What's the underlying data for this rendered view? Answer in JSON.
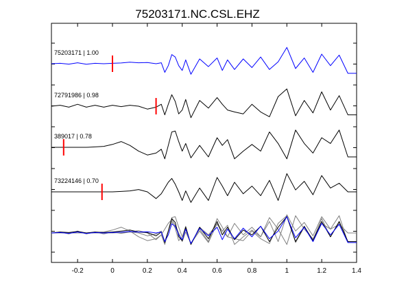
{
  "chart_data": {
    "type": "line",
    "title": "75203171.NC.CSL.EHZ",
    "xlabel": "",
    "ylabel": "",
    "xlim": [
      -0.35,
      1.4
    ],
    "xticks": [
      -0.2,
      0,
      0.2,
      0.4,
      0.6,
      0.8,
      1,
      1.2,
      1.4
    ],
    "xtick_labels": [
      "-0.2",
      "0",
      "0.2",
      "0.4",
      "0.6",
      "0.8",
      "1",
      "1.2",
      "1.4"
    ],
    "grid": false,
    "colors": {
      "reference": "#0000ff",
      "match": "#000000",
      "overlay": "#808080",
      "pick": "#ff0000",
      "axes": "#000000"
    },
    "traces": [
      {
        "label": "75203171 | 1.00",
        "pick_time": 0.0,
        "color": "reference",
        "x": [
          -0.35,
          -0.3,
          -0.25,
          -0.2,
          -0.15,
          -0.1,
          -0.05,
          0,
          0.05,
          0.1,
          0.15,
          0.2,
          0.25,
          0.28,
          0.3,
          0.32,
          0.34,
          0.36,
          0.38,
          0.4,
          0.42,
          0.45,
          0.5,
          0.55,
          0.6,
          0.63,
          0.66,
          0.7,
          0.75,
          0.8,
          0.85,
          0.9,
          0.95,
          1.0,
          1.05,
          1.1,
          1.15,
          1.2,
          1.25,
          1.3,
          1.35,
          1.4
        ],
        "y": [
          0.0,
          0.02,
          -0.02,
          0.05,
          -0.03,
          0.02,
          0.0,
          0.02,
          0.04,
          0.08,
          0.05,
          0.06,
          0.0,
          0.05,
          -0.45,
          -0.1,
          0.48,
          0.35,
          -0.1,
          -0.35,
          0.2,
          -0.55,
          0.25,
          -0.15,
          0.3,
          -0.35,
          0.2,
          -0.3,
          0.25,
          -0.2,
          0.35,
          -0.3,
          0.1,
          0.85,
          -0.25,
          0.3,
          -0.45,
          0.5,
          -0.1,
          0.45,
          -0.5,
          -0.5
        ]
      },
      {
        "label": "72791986 | 0.98",
        "pick_time": 0.25,
        "color": "match",
        "x": [
          -0.35,
          -0.3,
          -0.25,
          -0.2,
          -0.15,
          -0.1,
          -0.05,
          0,
          0.05,
          0.1,
          0.15,
          0.2,
          0.25,
          0.28,
          0.3,
          0.32,
          0.34,
          0.36,
          0.38,
          0.4,
          0.42,
          0.45,
          0.5,
          0.55,
          0.6,
          0.63,
          0.66,
          0.7,
          0.75,
          0.8,
          0.85,
          0.9,
          0.95,
          1.0,
          1.05,
          1.1,
          1.15,
          1.2,
          1.25,
          1.3,
          1.35,
          1.4
        ],
        "y": [
          0.0,
          0.05,
          -0.05,
          0.1,
          -0.05,
          0.05,
          -0.05,
          0.05,
          -0.02,
          0.05,
          0.0,
          -0.15,
          -0.05,
          0.1,
          -0.45,
          0.1,
          0.6,
          0.25,
          -0.4,
          -0.2,
          0.35,
          -0.6,
          0.3,
          -0.1,
          0.45,
          0.1,
          -0.2,
          -0.3,
          -0.4,
          0.1,
          -0.3,
          -0.55,
          0.5,
          0.9,
          -0.5,
          0.3,
          -0.35,
          0.75,
          -0.2,
          0.55,
          -0.45,
          -0.45
        ]
      },
      {
        "label": "389017 | 0.78",
        "pick_time": -0.28,
        "color": "match",
        "x": [
          -0.35,
          -0.3,
          -0.25,
          -0.2,
          -0.15,
          -0.1,
          -0.05,
          0,
          0.05,
          0.1,
          0.15,
          0.2,
          0.25,
          0.28,
          0.3,
          0.32,
          0.34,
          0.36,
          0.38,
          0.4,
          0.42,
          0.45,
          0.5,
          0.55,
          0.6,
          0.63,
          0.66,
          0.7,
          0.75,
          0.8,
          0.85,
          0.9,
          0.95,
          1.0,
          1.05,
          1.1,
          1.15,
          1.2,
          1.25,
          1.3,
          1.35,
          1.4
        ],
        "y": [
          0.0,
          0.0,
          0.0,
          0.0,
          0.0,
          0.02,
          0.05,
          0.15,
          0.3,
          0.1,
          -0.2,
          -0.4,
          -0.3,
          -0.1,
          -0.6,
          0.1,
          0.8,
          0.85,
          0.3,
          -0.2,
          0.2,
          -0.55,
          0.1,
          -0.5,
          0.5,
          0.1,
          0.4,
          -0.6,
          -0.2,
          0.15,
          -0.2,
          0.8,
          0.2,
          -0.6,
          0.9,
          0.2,
          -0.3,
          0.5,
          0.2,
          0.9,
          -0.5,
          -0.5
        ]
      },
      {
        "label": "73224146 | 0.70",
        "pick_time": -0.06,
        "color": "match",
        "x": [
          -0.35,
          -0.3,
          -0.25,
          -0.2,
          -0.15,
          -0.1,
          -0.05,
          0,
          0.05,
          0.1,
          0.15,
          0.2,
          0.25,
          0.28,
          0.3,
          0.32,
          0.34,
          0.36,
          0.38,
          0.4,
          0.42,
          0.45,
          0.5,
          0.55,
          0.6,
          0.63,
          0.66,
          0.7,
          0.75,
          0.8,
          0.85,
          0.9,
          0.95,
          1.0,
          1.05,
          1.1,
          1.15,
          1.2,
          1.25,
          1.3,
          1.35,
          1.4
        ],
        "y": [
          0.0,
          0.0,
          0.0,
          0.0,
          0.0,
          0.0,
          0.0,
          0.0,
          0.02,
          0.05,
          0.12,
          0.0,
          -0.35,
          -0.1,
          0.2,
          0.5,
          0.7,
          0.4,
          0.0,
          -0.45,
          0.05,
          -0.55,
          0.2,
          -0.45,
          0.75,
          0.3,
          -0.2,
          0.5,
          -0.1,
          0.3,
          -0.2,
          0.6,
          -0.45,
          0.95,
          0.1,
          0.55,
          -0.15,
          0.85,
          0.2,
          0.45,
          0.0,
          0.0
        ]
      }
    ],
    "overlay": {
      "x": [
        -0.35,
        -0.3,
        -0.25,
        -0.2,
        -0.15,
        -0.1,
        -0.05,
        0,
        0.05,
        0.1,
        0.15,
        0.2,
        0.25,
        0.28,
        0.3,
        0.32,
        0.34,
        0.36,
        0.38,
        0.4,
        0.42,
        0.45,
        0.5,
        0.55,
        0.6,
        0.63,
        0.66,
        0.7,
        0.75,
        0.8,
        0.85,
        0.9,
        0.95,
        1.0,
        1.05,
        1.1,
        1.15,
        1.2,
        1.25,
        1.3,
        1.35,
        1.4
      ],
      "y": [
        0.0,
        0.05,
        0.02,
        0.08,
        0.0,
        0.05,
        0.02,
        0.05,
        0.1,
        0.15,
        0.05,
        0.02,
        -0.15,
        0.05,
        -0.5,
        0.1,
        0.75,
        0.55,
        -0.2,
        -0.4,
        0.3,
        -0.6,
        0.3,
        -0.3,
        0.6,
        -0.1,
        0.3,
        -0.35,
        0.15,
        -0.1,
        0.35,
        -0.45,
        0.3,
        0.85,
        -0.45,
        0.35,
        -0.4,
        0.6,
        -0.2,
        0.6,
        -0.45,
        -0.45
      ]
    }
  }
}
